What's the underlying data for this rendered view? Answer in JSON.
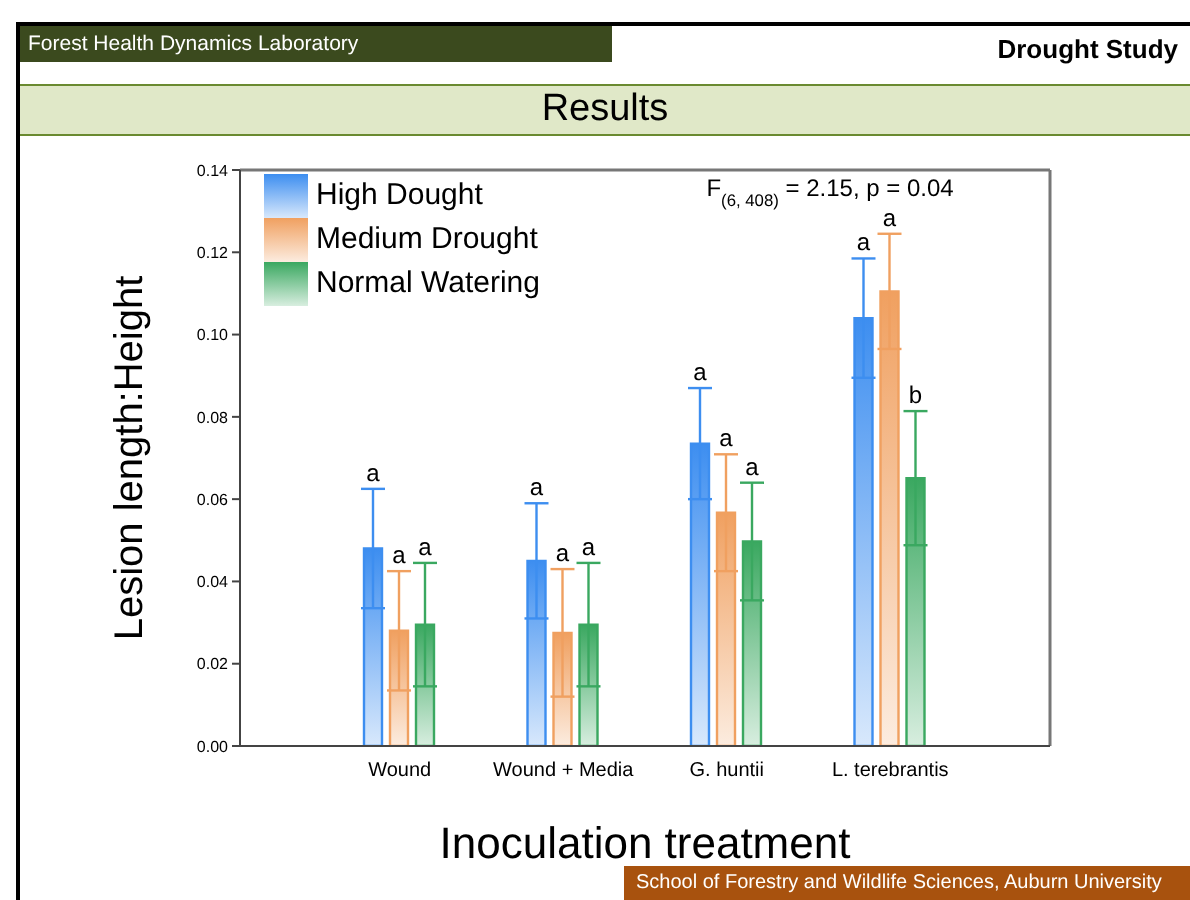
{
  "chart_data": {
    "type": "bar",
    "title": "Results",
    "subtitle": "Drought Study",
    "xlabel": "Inoculation treatment",
    "ylabel": "Lesion length:Height",
    "categories": [
      "Wound",
      "Wound + Media",
      "G. huntii",
      "L. terebrantis"
    ],
    "series": [
      {
        "name": "High Dought",
        "color": "#3d8ef0",
        "values": [
          0.048,
          0.045,
          0.0735,
          0.104
        ],
        "errors": [
          0.0145,
          0.014,
          0.0135,
          0.0145
        ],
        "value_labels": [
          "a",
          "a",
          "a",
          "a"
        ]
      },
      {
        "name": "Medium Drought",
        "color": "#f0a060",
        "values": [
          0.028,
          0.0275,
          0.0567,
          0.1105
        ],
        "errors": [
          0.0145,
          0.0155,
          0.0142,
          0.014
        ],
        "value_labels": [
          "a",
          "a",
          "a",
          "a"
        ]
      },
      {
        "name": "Normal Watering",
        "color": "#3aa860",
        "values": [
          0.0295,
          0.0295,
          0.0497,
          0.0651
        ],
        "errors": [
          0.015,
          0.015,
          0.0143,
          0.0163
        ],
        "value_labels": [
          "a",
          "a",
          "a",
          "b"
        ]
      }
    ],
    "ylim": [
      0,
      0.14
    ],
    "yticks": [
      {
        "value": 0,
        "label": "0.00"
      },
      {
        "value": 0.02,
        "label": "0.02"
      },
      {
        "value": 0.04,
        "label": "0.04"
      },
      {
        "value": 0.06,
        "label": "0.06"
      },
      {
        "value": 0.08,
        "label": "0.08"
      },
      {
        "value": 0.1,
        "label": "0.10"
      },
      {
        "value": 0.12,
        "label": "0.12"
      },
      {
        "value": 0.14,
        "label": "0.14"
      }
    ],
    "grid": false,
    "legend": "top left",
    "annotations": [
      "Forest Health Dynamics Laboratory",
      "F$_{(6, 408)}$ = 2.15, p = 0.04",
      "School of Forestry and Wildlife Sciences, Auburn University"
    ]
  }
}
